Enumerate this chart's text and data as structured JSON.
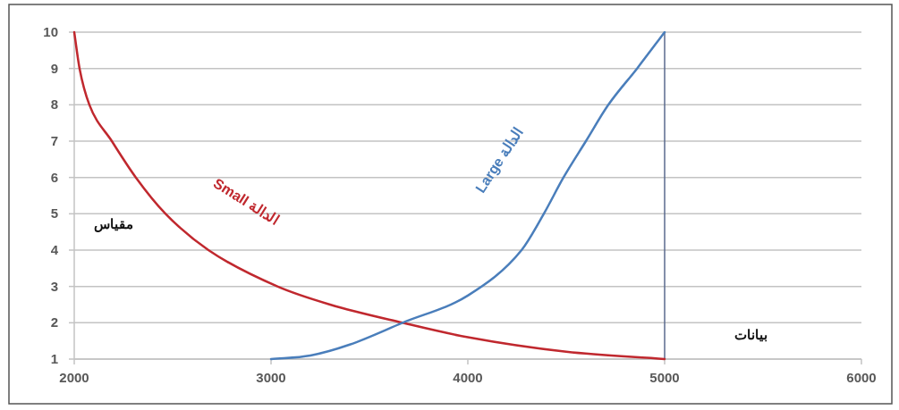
{
  "chart_data": {
    "type": "line",
    "xlabel": "بيانات",
    "ylabel": "مقياس",
    "series": [
      {
        "name": "الدالة Small",
        "color": "#c0282e",
        "x": [
          2000,
          2027,
          2077,
          2191,
          2313,
          2464,
          2682,
          3032,
          3300,
          3668,
          4000,
          4500,
          5000
        ],
        "values": [
          10,
          9,
          8,
          7,
          6,
          5,
          4,
          3,
          2.5,
          2,
          1.6,
          1.2,
          1
        ]
      },
      {
        "name": "الدالة Large",
        "color": "#4a7ebb",
        "x": [
          3000,
          3200,
          3400,
          3668,
          4000,
          4273,
          4386,
          4486,
          4600,
          4714,
          4860,
          5000
        ],
        "values": [
          1,
          1.1,
          1.4,
          2,
          2.75,
          4,
          5,
          6,
          7,
          8,
          9,
          10
        ]
      }
    ],
    "xlim": [
      2000,
      6000
    ],
    "ylim": [
      1,
      10
    ],
    "xticks": [
      2000,
      3000,
      4000,
      5000,
      6000
    ],
    "yticks": [
      1,
      2,
      3,
      4,
      5,
      6,
      7,
      8,
      9,
      10
    ],
    "grid": "y",
    "marker": "none",
    "ref_lines": [
      {
        "axis": "x",
        "value": 5000,
        "color": "#5a6a8e"
      }
    ]
  }
}
